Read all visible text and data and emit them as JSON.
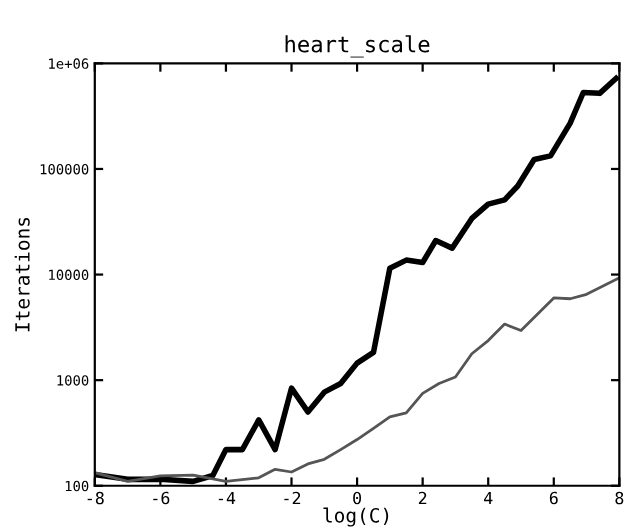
{
  "chart_data": {
    "type": "line",
    "title": "heart_scale",
    "xlabel": "log(C)",
    "ylabel": "Iterations",
    "log": "y",
    "grid": false,
    "xlim": [
      -8,
      8
    ],
    "xticks": [
      -8,
      -6,
      -4,
      -2,
      0,
      2,
      4,
      6,
      8
    ],
    "ylim": [
      100,
      1000000
    ],
    "yticks": [
      100,
      1000,
      10000,
      100000,
      {
        "value": 1000000,
        "label": "1e+06"
      }
    ],
    "series": [
      {
        "color": "#000000",
        "x": [
          -8,
          -7,
          -6,
          -5,
          -4.4,
          -4,
          -3.5,
          -3,
          -2.5,
          -2,
          -1.5,
          -1,
          -0.5,
          0,
          0.5,
          1,
          1.5,
          2,
          2.4,
          2.9,
          3.5,
          4,
          4.5,
          4.9,
          5.4,
          5.9,
          6.5,
          6.9,
          7.4,
          7.9
        ],
        "values": [
          128,
          115,
          115,
          110,
          125,
          220,
          220,
          420,
          220,
          840,
          500,
          770,
          930,
          1450,
          1830,
          11500,
          13700,
          13000,
          21000,
          17800,
          34000,
          46500,
          51000,
          69000,
          123000,
          133000,
          272000,
          530000,
          520000,
          720000
        ]
      },
      {
        "color": "#555555",
        "x": [
          -8,
          -7,
          -6,
          -5,
          -4,
          -3,
          -2.5,
          -2,
          -1.5,
          -1,
          -0.5,
          0,
          0.5,
          1,
          1.5,
          2,
          2.5,
          3,
          3.5,
          4,
          4.5,
          5,
          5.5,
          6,
          6.5,
          7,
          8
        ],
        "values": [
          133,
          110,
          124,
          126,
          110,
          119,
          143,
          135,
          161,
          178,
          220,
          274,
          350,
          450,
          490,
          750,
          930,
          1070,
          1780,
          2370,
          3400,
          2950,
          4200,
          6000,
          5900,
          6500,
          9300
        ]
      }
    ]
  }
}
